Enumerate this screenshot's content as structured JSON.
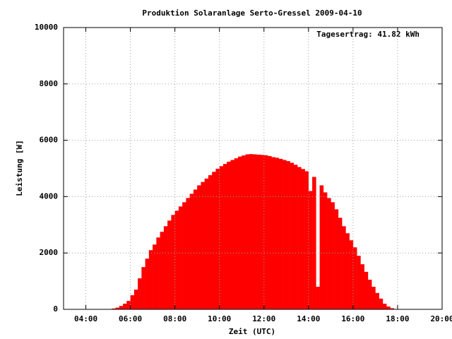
{
  "chart_data": {
    "type": "bar",
    "title": "Produktion Solaranlage Serto-Gressel 2009-04-10",
    "annotation": "Tagesertrag: 41.82 kWh",
    "xlabel": "Zeit (UTC)",
    "ylabel": "Leistung [W]",
    "color": "#ff0000",
    "grid": true,
    "xlim": [
      180,
      1200
    ],
    "xticks": [
      {
        "value": 240,
        "label": "04:00"
      },
      {
        "value": 360,
        "label": "06:00"
      },
      {
        "value": 480,
        "label": "08:00"
      },
      {
        "value": 600,
        "label": "10:00"
      },
      {
        "value": 720,
        "label": "12:00"
      },
      {
        "value": 840,
        "label": "14:00"
      },
      {
        "value": 960,
        "label": "16:00"
      },
      {
        "value": 1080,
        "label": "18:00"
      },
      {
        "value": 1200,
        "label": "20:00"
      }
    ],
    "ylim": [
      0,
      10000
    ],
    "yticks": [
      0,
      2000,
      4000,
      6000,
      8000,
      10000
    ],
    "x": [
      300,
      310,
      320,
      330,
      340,
      350,
      360,
      370,
      380,
      390,
      400,
      410,
      420,
      430,
      440,
      450,
      460,
      470,
      480,
      490,
      500,
      510,
      520,
      530,
      540,
      550,
      560,
      570,
      580,
      590,
      600,
      610,
      620,
      630,
      640,
      650,
      660,
      670,
      680,
      690,
      700,
      710,
      720,
      730,
      740,
      750,
      760,
      770,
      780,
      790,
      800,
      810,
      820,
      830,
      840,
      850,
      860,
      870,
      880,
      890,
      900,
      910,
      920,
      930,
      940,
      950,
      960,
      970,
      980,
      990,
      1000,
      1010,
      1020,
      1030,
      1040,
      1050,
      1060,
      1070
    ],
    "values": [
      0,
      30,
      60,
      120,
      200,
      300,
      500,
      700,
      1100,
      1500,
      1800,
      2100,
      2300,
      2550,
      2750,
      2950,
      3150,
      3350,
      3500,
      3650,
      3800,
      3950,
      4100,
      4250,
      4400,
      4520,
      4640,
      4760,
      4880,
      4990,
      5080,
      5160,
      5240,
      5300,
      5360,
      5420,
      5460,
      5500,
      5510,
      5500,
      5490,
      5480,
      5470,
      5440,
      5400,
      5380,
      5340,
      5300,
      5260,
      5200,
      5130,
      5050,
      4980,
      4900,
      4200,
      4700,
      800,
      4400,
      4150,
      3950,
      3800,
      3550,
      3250,
      2950,
      2700,
      2450,
      2200,
      1900,
      1600,
      1330,
      1050,
      800,
      580,
      380,
      200,
      100,
      40,
      10
    ]
  }
}
